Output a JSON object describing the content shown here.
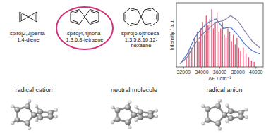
{
  "molecules": [
    {
      "label": [
        "spiro[2,2]penta-",
        "1,4-diene"
      ],
      "ring": 3
    },
    {
      "label": [
        "spiro[4,4]nona-",
        "1,3,6,8-tetraene"
      ],
      "ring": 5
    },
    {
      "label": [
        "spiro[6,6]trideca-",
        "1,3,5,8,10,12-",
        "hexaene"
      ],
      "ring": 7
    }
  ],
  "states": [
    "radical cation",
    "neutral molecule",
    "radical anion"
  ],
  "chart_data": {
    "type": "line",
    "x_label": "ΔE / cm⁻¹",
    "y_label": "Intensity / a.u.",
    "xlim": [
      31200,
      40800
    ],
    "xticks": [
      32000,
      34000,
      36000,
      38000,
      40000
    ],
    "ylim": [
      0,
      1
    ],
    "tick_labels": "x",
    "series": [
      {
        "type": "bar",
        "color": "#e05a7a",
        "x": [
          32300,
          32600,
          32900,
          33200,
          33500,
          33700,
          33900,
          34100,
          34300,
          34500,
          34700,
          34900,
          35100,
          35300,
          35500,
          35700,
          35900,
          36100,
          36300,
          36500,
          36700,
          36900,
          37100,
          37300,
          37500,
          37700,
          37900,
          38100,
          38300,
          38600,
          38900,
          39200,
          39500,
          39800
        ],
        "values": [
          0.15,
          0.25,
          0.3,
          0.45,
          0.55,
          0.4,
          0.6,
          0.7,
          0.5,
          0.8,
          0.65,
          0.75,
          0.9,
          0.6,
          0.7,
          0.85,
          0.55,
          0.6,
          0.7,
          0.5,
          0.45,
          0.6,
          0.55,
          0.4,
          0.5,
          0.35,
          0.45,
          0.3,
          0.25,
          0.3,
          0.2,
          0.15,
          0.1,
          0.08
        ]
      },
      {
        "type": "line",
        "color": "#4a7bd0",
        "x": [
          31600,
          32400,
          33200,
          34000,
          34800,
          35600,
          36400,
          37200,
          38000,
          38800,
          39600,
          40400
        ],
        "values": [
          0.05,
          0.2,
          0.45,
          0.6,
          0.7,
          0.75,
          0.6,
          0.62,
          0.5,
          0.35,
          0.25,
          0.2
        ]
      },
      {
        "type": "line",
        "color": "#8a7ba8",
        "x": [
          31600,
          32400,
          33200,
          34000,
          34800,
          35600,
          36400,
          37200,
          38000,
          38800,
          39600,
          40400
        ],
        "values": [
          0.05,
          0.15,
          0.35,
          0.5,
          0.6,
          0.7,
          0.72,
          0.8,
          0.72,
          0.55,
          0.4,
          0.3
        ]
      }
    ]
  }
}
